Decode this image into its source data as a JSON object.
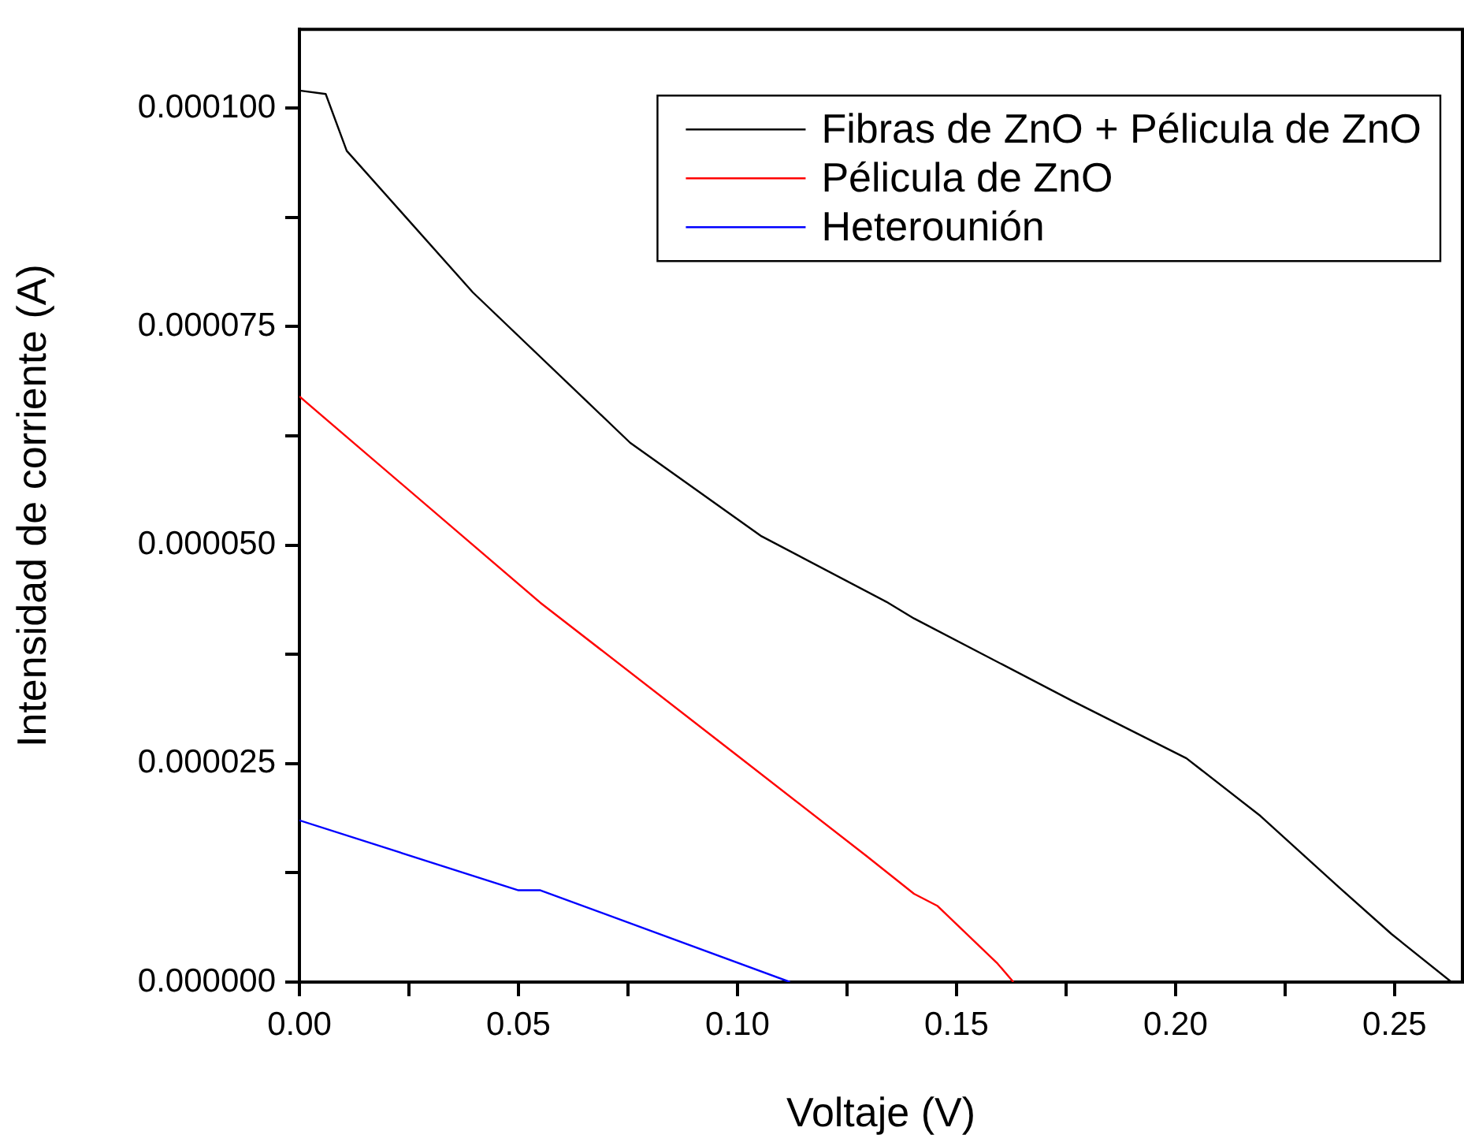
{
  "chart_data": {
    "type": "line",
    "xlabel": "Voltaje (V)",
    "ylabel": "Intensidad de corriente (A)",
    "xlim": [
      0,
      0.2655
    ],
    "ylim": [
      0,
      0.000109
    ],
    "xticks": [
      {
        "value": 0,
        "label": "0.00"
      },
      {
        "value": 0.025,
        "label": null
      },
      {
        "value": 0.05,
        "label": "0.05"
      },
      {
        "value": 0.075,
        "label": null
      },
      {
        "value": 0.1,
        "label": "0.10"
      },
      {
        "value": 0.125,
        "label": null
      },
      {
        "value": 0.15,
        "label": "0.15"
      },
      {
        "value": 0.175,
        "label": null
      },
      {
        "value": 0.2,
        "label": "0.20"
      },
      {
        "value": 0.225,
        "label": null
      },
      {
        "value": 0.25,
        "label": "0.25"
      }
    ],
    "yticks": [
      {
        "value": 0,
        "label": "0.000000"
      },
      {
        "value": 1.25e-05,
        "label": null
      },
      {
        "value": 2.5e-05,
        "label": "0.000025"
      },
      {
        "value": 3.75e-05,
        "label": null
      },
      {
        "value": 5e-05,
        "label": "0.000050"
      },
      {
        "value": 6.25e-05,
        "label": null
      },
      {
        "value": 7.5e-05,
        "label": "0.000075"
      },
      {
        "value": 8.75e-05,
        "label": null
      },
      {
        "value": 0.0001,
        "label": "0.000100"
      }
    ],
    "grid": false,
    "legend": "top right",
    "marker": "none",
    "line_style": "solid",
    "series": [
      {
        "name": "Fibras de ZnO + Pélicula de ZnO",
        "color": "#000000",
        "x": [
          0,
          0.006,
          0.0108,
          0.0396,
          0.0755,
          0.1055,
          0.134,
          0.1403,
          0.1763,
          0.2025,
          0.2194,
          0.2374,
          0.2493,
          0.263
        ],
        "values": [
          0.000102,
          0.0001016,
          9.51e-05,
          7.89e-05,
          6.17e-05,
          5.1e-05,
          4.35e-05,
          4.16e-05,
          3.22e-05,
          2.56e-05,
          1.9e-05,
          1.08e-05,
          5.5e-06,
          0
        ]
      },
      {
        "name": "Pélicula de ZnO",
        "color": "#ff0000",
        "x": [
          0,
          0.055,
          0.1,
          0.1295,
          0.1403,
          0.1457,
          0.1594,
          0.163
        ],
        "values": [
          6.7e-05,
          4.34e-05,
          2.59e-05,
          1.44e-05,
          1.01e-05,
          8.7e-06,
          2.1e-06,
          0
        ]
      },
      {
        "name": "Heterounión",
        "color": "#0000ff",
        "x": [
          0,
          0.05,
          0.055,
          0.112
        ],
        "values": [
          1.85e-05,
          1.05e-05,
          1.05e-05,
          0
        ]
      }
    ]
  }
}
